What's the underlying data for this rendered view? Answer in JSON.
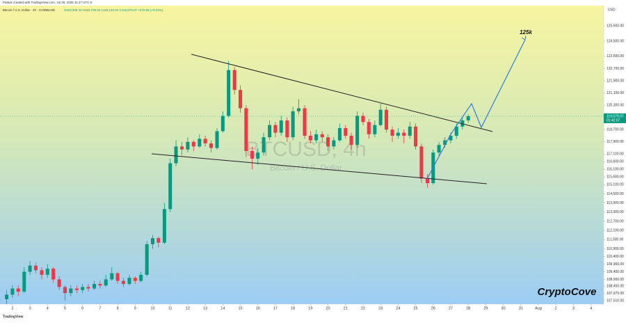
{
  "header": {
    "credit": "Pattiok created with TradingView.com, Jul 28, 2025 11:17 UTC-5",
    "symbol": "Bitcoin / U.S. Dollar · 4h · COINBASE",
    "ohlc": "O119,306.42 H119,709.32 L119,134.04 C119,579.07 +272.65 (+0.23%)"
  },
  "footer": {
    "brand": "TradingView"
  },
  "chart_data": {
    "type": "candlestick",
    "watermark": "BTCUSD, 4h",
    "watermark_sub": "Bitcoin / U.S. Dollar",
    "currency": "USD",
    "annotation": "125k",
    "signature": "CryptoCove",
    "up_color": "#089981",
    "down_color": "#f23645",
    "last_price": {
      "value": 119579.07,
      "label": "119,579.07"
    },
    "countdown": "01:42:07",
    "xlim": [
      1.29,
      35.73
    ],
    "ylim": [
      107280,
      126820
    ],
    "xticks": [
      2,
      3,
      4,
      5,
      6,
      7,
      8,
      9,
      10,
      11,
      12,
      13,
      14,
      15,
      16,
      17,
      18,
      19,
      20,
      21,
      22,
      23,
      24,
      25,
      26,
      27,
      28,
      29,
      30,
      31,
      {
        "value": 32,
        "label": "Aug"
      },
      {
        "value": 33,
        "label": "2"
      },
      {
        "value": 34,
        "label": "3"
      },
      {
        "value": 35,
        "label": "4"
      }
    ],
    "yticks": [
      {
        "value": 125500,
        "label": "125,500.00"
      },
      {
        "value": 124500,
        "label": "124,500.00"
      },
      {
        "value": 123500,
        "label": "123,500.00"
      },
      {
        "value": 122700,
        "label": "122,700.00"
      },
      {
        "value": 121900,
        "label": "121,900.00"
      },
      {
        "value": 121100,
        "label": "121,100.00"
      },
      {
        "value": 120300,
        "label": "120,300.00"
      },
      {
        "value": 118700,
        "label": "118,700.00"
      },
      {
        "value": 117900,
        "label": "117,900.00"
      },
      {
        "value": 117100,
        "label": "117,100.00"
      },
      {
        "value": 116600,
        "label": "116,600.00"
      },
      {
        "value": 116100,
        "label": "116,100.00"
      },
      {
        "value": 115600,
        "label": "115,600.00"
      },
      {
        "value": 115100,
        "label": "115,100.00"
      },
      {
        "value": 114500,
        "label": "114,500.00"
      },
      {
        "value": 113900,
        "label": "113,900.00"
      },
      {
        "value": 113300,
        "label": "113,300.00"
      },
      {
        "value": 112700,
        "label": "112,700.00"
      },
      {
        "value": 112100,
        "label": "112,100.00"
      },
      {
        "value": 111500,
        "label": "111,500.00"
      },
      {
        "value": 110900,
        "label": "110,900.00"
      },
      {
        "value": 110400,
        "label": "110,400.00"
      },
      {
        "value": 109900,
        "label": "109,900.00"
      },
      {
        "value": 109400,
        "label": "109,400.00"
      },
      {
        "value": 108900,
        "label": "108,900.00"
      },
      {
        "value": 108450,
        "label": "108,450.00"
      },
      {
        "value": 107970,
        "label": "107,970.00"
      },
      {
        "value": 107510,
        "label": "107,510.00"
      }
    ],
    "candles": [
      {
        "x": 1.67,
        "o": 107600,
        "h": 108200,
        "l": 107300,
        "c": 107900
      },
      {
        "x": 2.0,
        "o": 107900,
        "h": 108500,
        "l": 107700,
        "c": 108300
      },
      {
        "x": 2.33,
        "o": 108300,
        "h": 108500,
        "l": 107800,
        "c": 108100
      },
      {
        "x": 2.67,
        "o": 108100,
        "h": 109700,
        "l": 108000,
        "c": 109400
      },
      {
        "x": 3.0,
        "o": 109400,
        "h": 110100,
        "l": 109200,
        "c": 109800
      },
      {
        "x": 3.33,
        "o": 109800,
        "h": 110000,
        "l": 109300,
        "c": 109500
      },
      {
        "x": 3.67,
        "o": 109500,
        "h": 109700,
        "l": 108900,
        "c": 109200
      },
      {
        "x": 4.0,
        "o": 109200,
        "h": 109900,
        "l": 109000,
        "c": 109600
      },
      {
        "x": 4.33,
        "o": 109600,
        "h": 109700,
        "l": 108700,
        "c": 108900
      },
      {
        "x": 4.67,
        "o": 108900,
        "h": 109100,
        "l": 108200,
        "c": 108400
      },
      {
        "x": 5.0,
        "o": 108400,
        "h": 108500,
        "l": 107500,
        "c": 108000
      },
      {
        "x": 5.33,
        "o": 108000,
        "h": 108500,
        "l": 107800,
        "c": 108300
      },
      {
        "x": 5.67,
        "o": 108300,
        "h": 108500,
        "l": 108000,
        "c": 108200
      },
      {
        "x": 6.0,
        "o": 108200,
        "h": 108600,
        "l": 108000,
        "c": 108400
      },
      {
        "x": 6.33,
        "o": 108400,
        "h": 108600,
        "l": 108100,
        "c": 108300
      },
      {
        "x": 6.67,
        "o": 108300,
        "h": 108800,
        "l": 108200,
        "c": 108600
      },
      {
        "x": 7.0,
        "o": 108600,
        "h": 108800,
        "l": 108300,
        "c": 108500
      },
      {
        "x": 7.33,
        "o": 108500,
        "h": 109200,
        "l": 108400,
        "c": 108900
      },
      {
        "x": 7.67,
        "o": 108900,
        "h": 109700,
        "l": 108800,
        "c": 109300
      },
      {
        "x": 8.0,
        "o": 109300,
        "h": 109400,
        "l": 108600,
        "c": 108800
      },
      {
        "x": 8.33,
        "o": 108800,
        "h": 109000,
        "l": 108400,
        "c": 108600
      },
      {
        "x": 8.67,
        "o": 108600,
        "h": 109200,
        "l": 108500,
        "c": 109000
      },
      {
        "x": 9.0,
        "o": 109000,
        "h": 109100,
        "l": 108600,
        "c": 108800
      },
      {
        "x": 9.33,
        "o": 108800,
        "h": 109400,
        "l": 108700,
        "c": 109200
      },
      {
        "x": 9.67,
        "o": 109200,
        "h": 111400,
        "l": 109100,
        "c": 111200
      },
      {
        "x": 10.0,
        "o": 111200,
        "h": 111800,
        "l": 110900,
        "c": 111600
      },
      {
        "x": 10.33,
        "o": 111600,
        "h": 111700,
        "l": 111000,
        "c": 111300
      },
      {
        "x": 10.67,
        "o": 111300,
        "h": 113900,
        "l": 111200,
        "c": 113500
      },
      {
        "x": 11.0,
        "o": 113500,
        "h": 116800,
        "l": 113300,
        "c": 116500
      },
      {
        "x": 11.33,
        "o": 116500,
        "h": 118000,
        "l": 116300,
        "c": 117600
      },
      {
        "x": 11.67,
        "o": 117600,
        "h": 117900,
        "l": 117000,
        "c": 117400
      },
      {
        "x": 12.0,
        "o": 117400,
        "h": 118200,
        "l": 117200,
        "c": 117900
      },
      {
        "x": 12.33,
        "o": 117900,
        "h": 118000,
        "l": 117300,
        "c": 117600
      },
      {
        "x": 12.67,
        "o": 117600,
        "h": 118400,
        "l": 117500,
        "c": 118100
      },
      {
        "x": 13.0,
        "o": 118100,
        "h": 118300,
        "l": 117600,
        "c": 117800
      },
      {
        "x": 13.33,
        "o": 117800,
        "h": 118000,
        "l": 117200,
        "c": 117500
      },
      {
        "x": 13.67,
        "o": 117500,
        "h": 118800,
        "l": 117400,
        "c": 118600
      },
      {
        "x": 14.0,
        "o": 118600,
        "h": 119900,
        "l": 118500,
        "c": 119600
      },
      {
        "x": 14.33,
        "o": 119600,
        "h": 123200,
        "l": 119500,
        "c": 122600
      },
      {
        "x": 14.67,
        "o": 122600,
        "h": 122800,
        "l": 121000,
        "c": 121300
      },
      {
        "x": 15.0,
        "o": 121300,
        "h": 121600,
        "l": 119800,
        "c": 120100
      },
      {
        "x": 15.33,
        "o": 120100,
        "h": 120300,
        "l": 116900,
        "c": 117300
      },
      {
        "x": 15.67,
        "o": 117300,
        "h": 117600,
        "l": 116100,
        "c": 116800
      },
      {
        "x": 16.0,
        "o": 116800,
        "h": 117500,
        "l": 116400,
        "c": 117200
      },
      {
        "x": 16.33,
        "o": 117200,
        "h": 118500,
        "l": 117000,
        "c": 118200
      },
      {
        "x": 16.67,
        "o": 118200,
        "h": 119300,
        "l": 118000,
        "c": 119000
      },
      {
        "x": 17.0,
        "o": 119000,
        "h": 119200,
        "l": 118200,
        "c": 118500
      },
      {
        "x": 17.33,
        "o": 118500,
        "h": 119600,
        "l": 118300,
        "c": 119300
      },
      {
        "x": 17.67,
        "o": 119300,
        "h": 119500,
        "l": 117900,
        "c": 118200
      },
      {
        "x": 18.0,
        "o": 118200,
        "h": 120200,
        "l": 118000,
        "c": 119900
      },
      {
        "x": 18.33,
        "o": 119900,
        "h": 120700,
        "l": 119700,
        "c": 120100
      },
      {
        "x": 18.67,
        "o": 120100,
        "h": 120300,
        "l": 118100,
        "c": 118300
      },
      {
        "x": 19.0,
        "o": 118300,
        "h": 118600,
        "l": 117800,
        "c": 118000
      },
      {
        "x": 19.33,
        "o": 118000,
        "h": 118700,
        "l": 117800,
        "c": 118400
      },
      {
        "x": 19.67,
        "o": 118400,
        "h": 118600,
        "l": 117900,
        "c": 118200
      },
      {
        "x": 20.0,
        "o": 118200,
        "h": 118400,
        "l": 117300,
        "c": 117600
      },
      {
        "x": 20.33,
        "o": 117600,
        "h": 118200,
        "l": 117400,
        "c": 118000
      },
      {
        "x": 20.67,
        "o": 118000,
        "h": 119100,
        "l": 117900,
        "c": 118800
      },
      {
        "x": 21.0,
        "o": 118800,
        "h": 119000,
        "l": 118100,
        "c": 118300
      },
      {
        "x": 21.33,
        "o": 118300,
        "h": 118500,
        "l": 117400,
        "c": 117700
      },
      {
        "x": 21.67,
        "o": 117700,
        "h": 119900,
        "l": 117500,
        "c": 119600
      },
      {
        "x": 22.0,
        "o": 119600,
        "h": 119800,
        "l": 119000,
        "c": 119200
      },
      {
        "x": 22.33,
        "o": 119200,
        "h": 119400,
        "l": 118100,
        "c": 118400
      },
      {
        "x": 22.67,
        "o": 118400,
        "h": 119300,
        "l": 118200,
        "c": 119000
      },
      {
        "x": 23.0,
        "o": 119000,
        "h": 120400,
        "l": 118900,
        "c": 120000
      },
      {
        "x": 23.33,
        "o": 120000,
        "h": 120200,
        "l": 118500,
        "c": 118700
      },
      {
        "x": 23.67,
        "o": 118700,
        "h": 118900,
        "l": 117900,
        "c": 118300
      },
      {
        "x": 24.0,
        "o": 118300,
        "h": 118800,
        "l": 118100,
        "c": 118500
      },
      {
        "x": 24.33,
        "o": 118500,
        "h": 118700,
        "l": 117800,
        "c": 118300
      },
      {
        "x": 24.67,
        "o": 118300,
        "h": 119200,
        "l": 118100,
        "c": 118900
      },
      {
        "x": 25.0,
        "o": 118900,
        "h": 119100,
        "l": 117400,
        "c": 117600
      },
      {
        "x": 25.33,
        "o": 117600,
        "h": 117800,
        "l": 115200,
        "c": 115500
      },
      {
        "x": 25.67,
        "o": 115500,
        "h": 115800,
        "l": 114900,
        "c": 115200
      },
      {
        "x": 26.0,
        "o": 115200,
        "h": 117400,
        "l": 115100,
        "c": 117200
      },
      {
        "x": 26.33,
        "o": 117200,
        "h": 117900,
        "l": 117000,
        "c": 117700
      },
      {
        "x": 26.67,
        "o": 117700,
        "h": 118200,
        "l": 117500,
        "c": 118000
      },
      {
        "x": 27.0,
        "o": 118000,
        "h": 118500,
        "l": 117800,
        "c": 118300
      },
      {
        "x": 27.33,
        "o": 118300,
        "h": 119100,
        "l": 118100,
        "c": 118900
      },
      {
        "x": 27.67,
        "o": 118900,
        "h": 119500,
        "l": 118700,
        "c": 119306.42
      },
      {
        "x": 28.0,
        "o": 119306.42,
        "h": 119709.32,
        "l": 119134.04,
        "c": 119579.07
      }
    ]
  }
}
